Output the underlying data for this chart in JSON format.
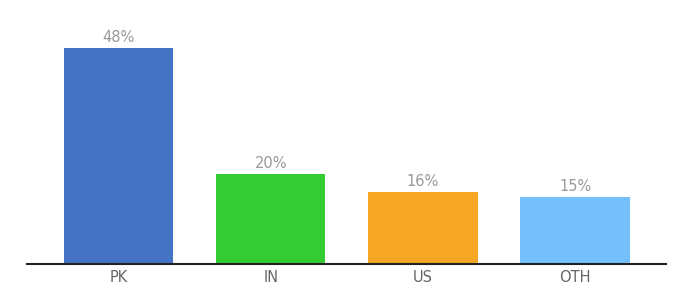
{
  "categories": [
    "PK",
    "IN",
    "US",
    "OTH"
  ],
  "values": [
    48,
    20,
    16,
    15
  ],
  "bar_colors": [
    "#4472c4",
    "#33cc33",
    "#f5a623",
    "#74c0fc"
  ],
  "label_texts": [
    "48%",
    "20%",
    "16%",
    "15%"
  ],
  "background_color": "#ffffff",
  "ylim": [
    0,
    54
  ],
  "bar_width": 0.72,
  "label_fontsize": 10.5,
  "tick_fontsize": 10.5,
  "label_color": "#999999",
  "tick_color": "#666666",
  "spine_color": "#222222",
  "spine_linewidth": 1.5,
  "figsize": [
    6.8,
    3.0
  ],
  "dpi": 100
}
